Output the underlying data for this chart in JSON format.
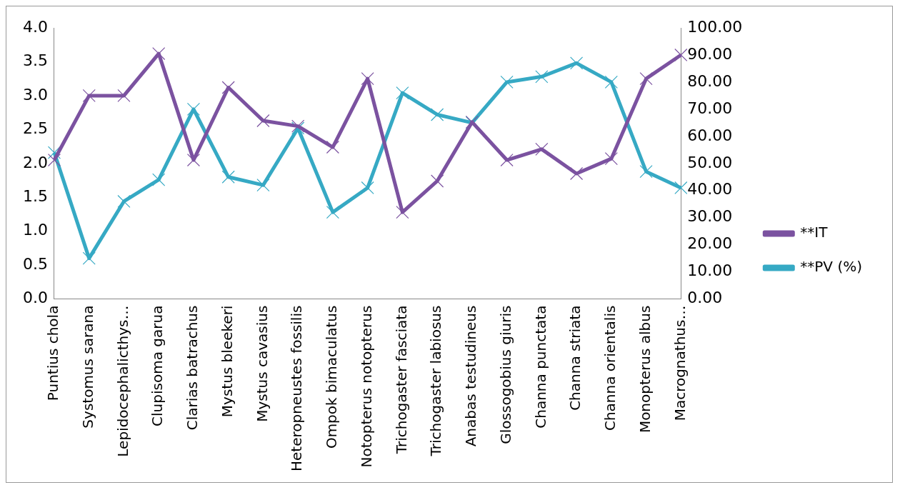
{
  "chart_data": {
    "type": "line",
    "categories": [
      "Puntius chola",
      "Systomus sarana",
      "Lepidocephalicthys…",
      "Clupisoma garua",
      "Clarias batrachus",
      "Mystus bleekeri",
      "Mystus cavasius",
      "Heteropneustes fossilis",
      "Ompok bimaculatus",
      "Notopterus notopterus",
      "Trichogaster fasciata",
      "Trichogaster labiosus",
      "Anabas testudineus",
      "Glossogobius giuris",
      "Channa punctata",
      "Channa striata",
      "Channa orientalis",
      "Monopterus albus",
      "Macrognathus…"
    ],
    "series": [
      {
        "name": "**IT",
        "color": "#7b52a0",
        "marker": "cross",
        "values": [
          2.05,
          3.0,
          3.0,
          3.62,
          2.05,
          3.12,
          2.63,
          2.55,
          2.24,
          3.25,
          1.28,
          1.74,
          2.61,
          2.05,
          2.21,
          1.85,
          2.07,
          3.25,
          3.6
        ]
      },
      {
        "name": "**PV (%)",
        "color": "#36a9c4",
        "marker": "cross",
        "axis": "y2",
        "values": [
          54,
          15,
          36,
          44,
          70,
          45,
          42,
          63,
          32,
          41,
          76,
          68,
          65,
          80,
          82,
          87,
          80,
          47,
          41
        ]
      }
    ],
    "ylim": [
      0,
      4
    ],
    "yticks": [
      {
        "value": 0,
        "label": "0.0"
      },
      {
        "value": 0.5,
        "label": "0.5"
      },
      {
        "value": 1,
        "label": "1.0"
      },
      {
        "value": 1.5,
        "label": "1.5"
      },
      {
        "value": 2,
        "label": "2.0"
      },
      {
        "value": 2.5,
        "label": "2.5"
      },
      {
        "value": 3,
        "label": "3.0"
      },
      {
        "value": 3.5,
        "label": "3.5"
      },
      {
        "value": 4,
        "label": "4.0"
      }
    ],
    "y2lim": [
      0,
      100
    ],
    "y2ticks": [
      {
        "value": 0,
        "label": "0.00"
      },
      {
        "value": 10,
        "label": "10.00"
      },
      {
        "value": 20,
        "label": "20.00"
      },
      {
        "value": 30,
        "label": "30.00"
      },
      {
        "value": 40,
        "label": "40.00"
      },
      {
        "value": 50,
        "label": "50.00"
      },
      {
        "value": 60,
        "label": "60.00"
      },
      {
        "value": 70,
        "label": "70.00"
      },
      {
        "value": 80,
        "label": "80.00"
      },
      {
        "value": 90,
        "label": "90.00"
      },
      {
        "value": 100,
        "label": "100.00"
      }
    ],
    "grid": false,
    "legend": "right",
    "line_style": "solid"
  }
}
